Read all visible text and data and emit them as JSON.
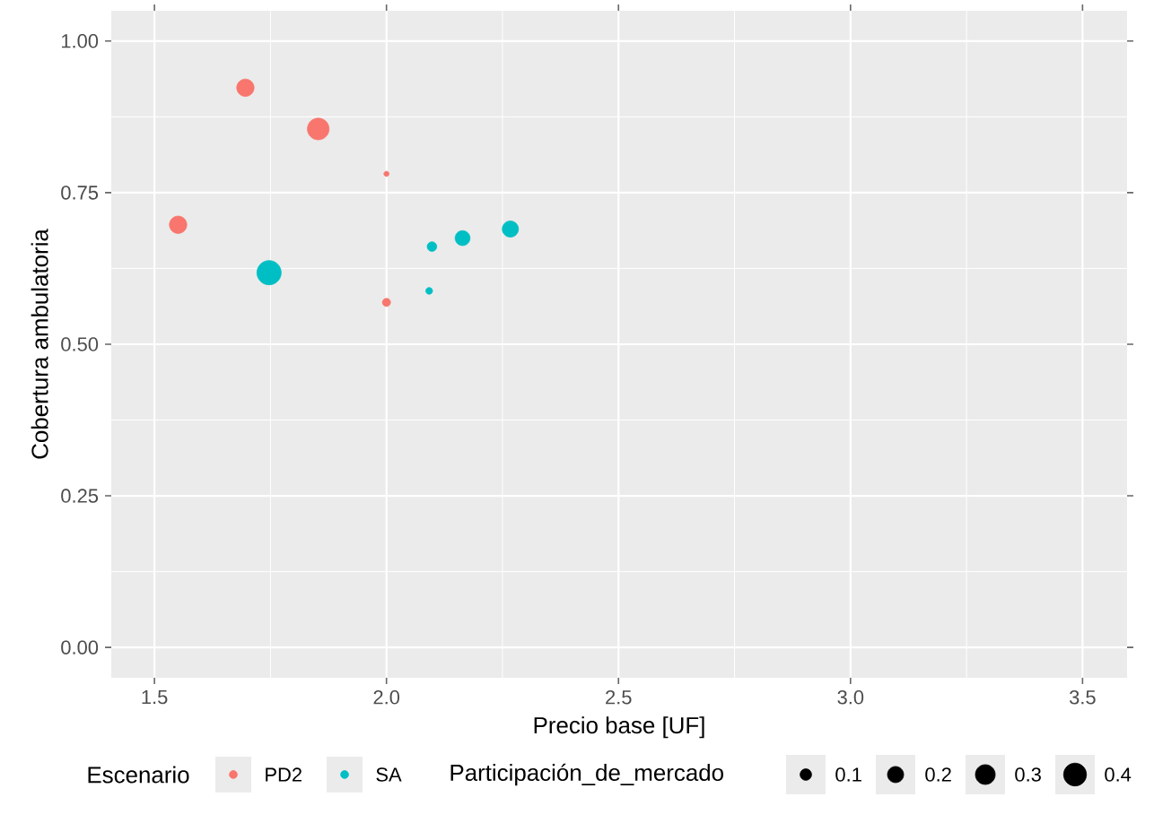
{
  "chart_data": {
    "type": "bubble",
    "xlabel": "Precio base [UF]",
    "ylabel": "Cobertura ambulatoria",
    "legend_title": "Escenario",
    "annotations": [
      "Participación_de_mercado"
    ],
    "xlim": [
      1.407,
      3.596
    ],
    "ylim": [
      -0.05,
      1.05
    ],
    "xticks": [
      {
        "value": 1.5,
        "label": "1.5"
      },
      {
        "value": 2,
        "label": "2.0"
      },
      {
        "value": 2.5,
        "label": "2.5"
      },
      {
        "value": 3,
        "label": "3.0"
      },
      {
        "value": 3.5,
        "label": "3.5"
      }
    ],
    "yticks": [
      {
        "value": 0,
        "label": "0.00"
      },
      {
        "value": 0.25,
        "label": "0.25"
      },
      {
        "value": 0.5,
        "label": "0.50"
      },
      {
        "value": 0.75,
        "label": "0.75"
      },
      {
        "value": 1,
        "label": "1.00"
      }
    ],
    "grid": true,
    "legend": "bottom",
    "marker": "circle",
    "size_legend": [
      0.1,
      0.2,
      0.3,
      0.4
    ],
    "series": [
      {
        "name": "PD2",
        "color": "#f8766d",
        "x": [
          1.696,
          1.853,
          2.0,
          1.551,
          2.0
        ],
        "values": [
          0.923,
          0.855,
          0.781,
          0.697,
          0.569
        ],
        "sizes": [
          0.23,
          0.36,
          0.02,
          0.23,
          0.05
        ]
      },
      {
        "name": "SA",
        "color": "#00bfc4",
        "x": [
          1.747,
          2.098,
          2.164,
          2.267,
          2.092
        ],
        "values": [
          0.618,
          0.661,
          0.675,
          0.69,
          0.588
        ],
        "sizes": [
          0.45,
          0.07,
          0.17,
          0.2,
          0.035
        ]
      }
    ]
  }
}
